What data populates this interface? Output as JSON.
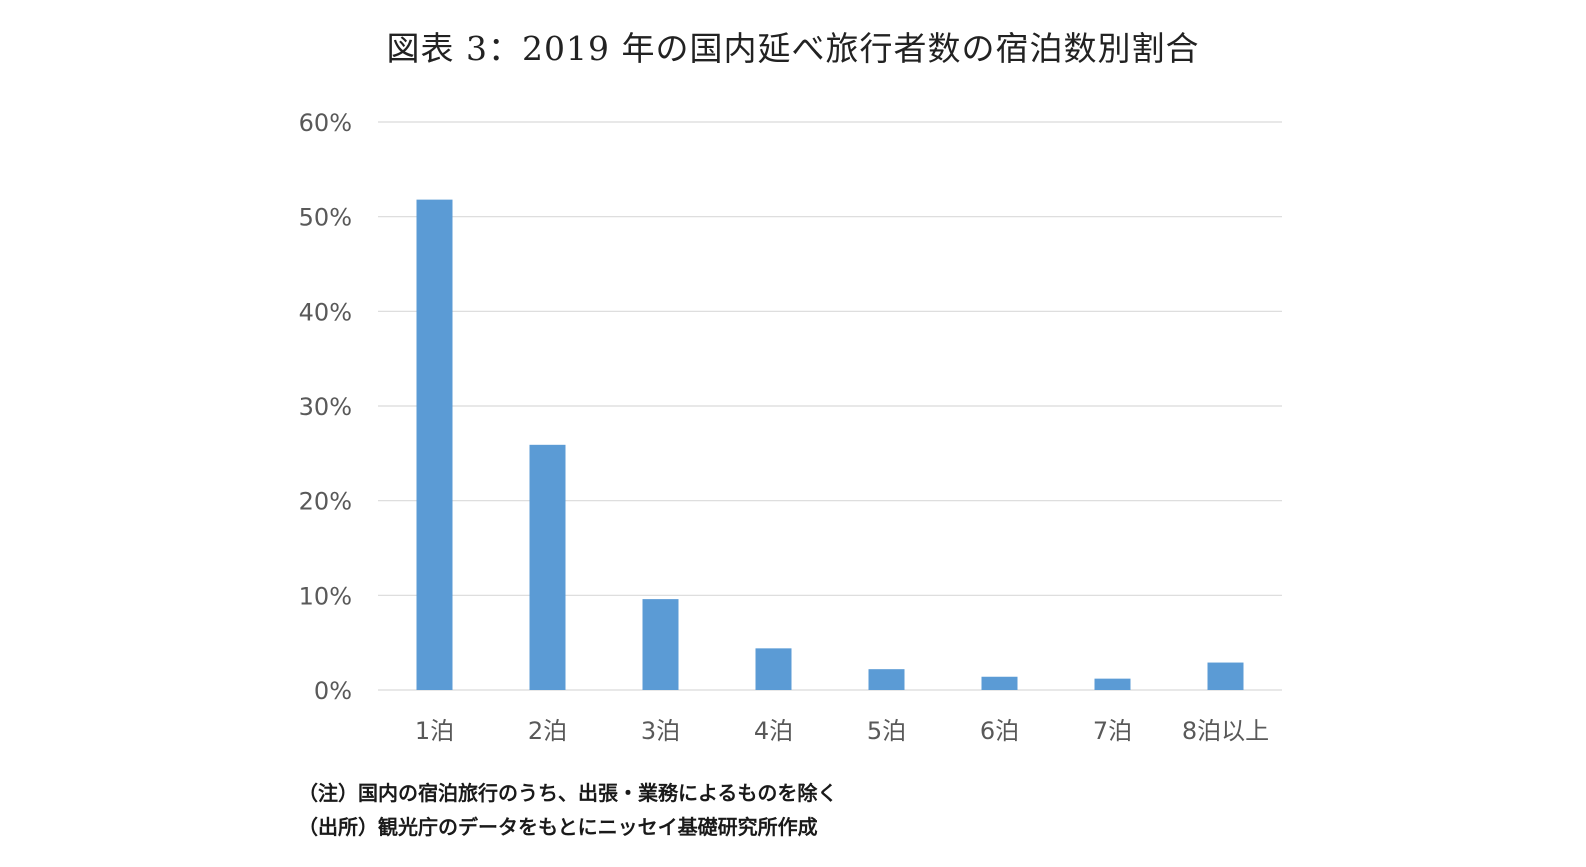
{
  "chart_data": {
    "type": "bar",
    "title": "図表 3：2019 年の国内延べ旅行者数の宿泊数別割合",
    "categories": [
      "1泊",
      "2泊",
      "3泊",
      "4泊",
      "5泊",
      "6泊",
      "7泊",
      "8泊以上"
    ],
    "values": [
      51.8,
      25.9,
      9.6,
      4.4,
      2.2,
      1.4,
      1.2,
      2.9
    ],
    "value_unit": "%",
    "ylim": [
      0,
      60
    ],
    "yticks": [
      0,
      10,
      20,
      30,
      40,
      50,
      60
    ],
    "ytick_labels": [
      "0%",
      "10%",
      "20%",
      "30%",
      "40%",
      "50%",
      "60%"
    ],
    "grid": true,
    "legend": "none",
    "bar_color": "#5B9BD5",
    "grid_color": "#D9D9D9",
    "xlabel": "",
    "ylabel": ""
  },
  "notes": {
    "note": "（注）国内の宿泊旅行のうち、出張・業務によるものを除く",
    "source": "（出所）観光庁のデータをもとにニッセイ基礎研究所作成"
  }
}
